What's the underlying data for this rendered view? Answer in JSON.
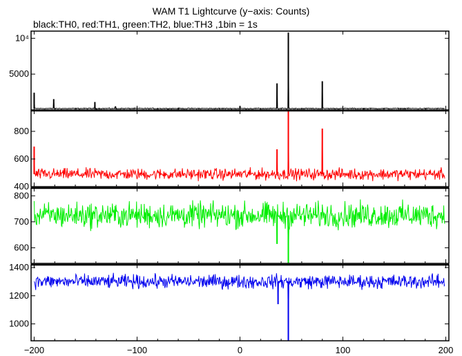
{
  "chart_data": {
    "type": "line",
    "title": "WAM T1 Lightcurve (y−axis: Counts)",
    "subtitle": "black:TH0, red:TH1, green:TH2, blue:TH3 ,1bin = 1s",
    "xlabel": "",
    "ylabel": "",
    "xlim": [
      -203,
      203
    ],
    "x_ticks": [
      -200,
      -100,
      0,
      100,
      200
    ],
    "x_tick_labels": [
      "−200",
      "−100",
      "0",
      "100",
      "200"
    ],
    "grid": false,
    "panels": [
      {
        "series": "TH0",
        "color": "#000000",
        "ylim": [
          0,
          11000
        ],
        "y_ticks": [
          5000,
          10000
        ],
        "y_tick_labels": [
          "5000",
          "10⁴"
        ],
        "baseline": 200,
        "noise": 40,
        "spikes": [
          {
            "x": -200,
            "y": 2400
          },
          {
            "x": -181,
            "y": 1500
          },
          {
            "x": -141,
            "y": 1100
          },
          {
            "x": -121,
            "y": 500
          },
          {
            "x": 0,
            "y": 550
          },
          {
            "x": 36,
            "y": 3700
          },
          {
            "x": 47,
            "y": 10800
          },
          {
            "x": 80,
            "y": 4000
          }
        ]
      },
      {
        "series": "TH1",
        "color": "#ff0000",
        "ylim": [
          400,
          950
        ],
        "y_ticks": [
          400,
          600,
          800
        ],
        "y_tick_labels": [
          "400",
          "600",
          "800"
        ],
        "baseline": 490,
        "noise": 25,
        "spikes": [
          {
            "x": -200,
            "y": 690
          },
          {
            "x": 36,
            "y": 670
          },
          {
            "x": 47,
            "y": 950
          },
          {
            "x": 80,
            "y": 820
          }
        ]
      },
      {
        "series": "TH2",
        "color": "#00ee00",
        "ylim": [
          540,
          830
        ],
        "y_ticks": [
          600,
          700,
          800
        ],
        "y_tick_labels": [
          "600",
          "700",
          "800"
        ],
        "baseline": 725,
        "noise": 30,
        "spikes": [
          {
            "x": 36,
            "y": 615
          },
          {
            "x": 47,
            "y": 540
          }
        ]
      },
      {
        "series": "TH3",
        "color": "#0000ee",
        "ylim": [
          880,
          1420
        ],
        "y_ticks": [
          1000,
          1200,
          1400
        ],
        "y_tick_labels": [
          "1000",
          "1200",
          "1400"
        ],
        "baseline": 1300,
        "noise": 30,
        "spikes": [
          {
            "x": 37,
            "y": 1140
          },
          {
            "x": 47,
            "y": 880
          }
        ]
      }
    ]
  }
}
